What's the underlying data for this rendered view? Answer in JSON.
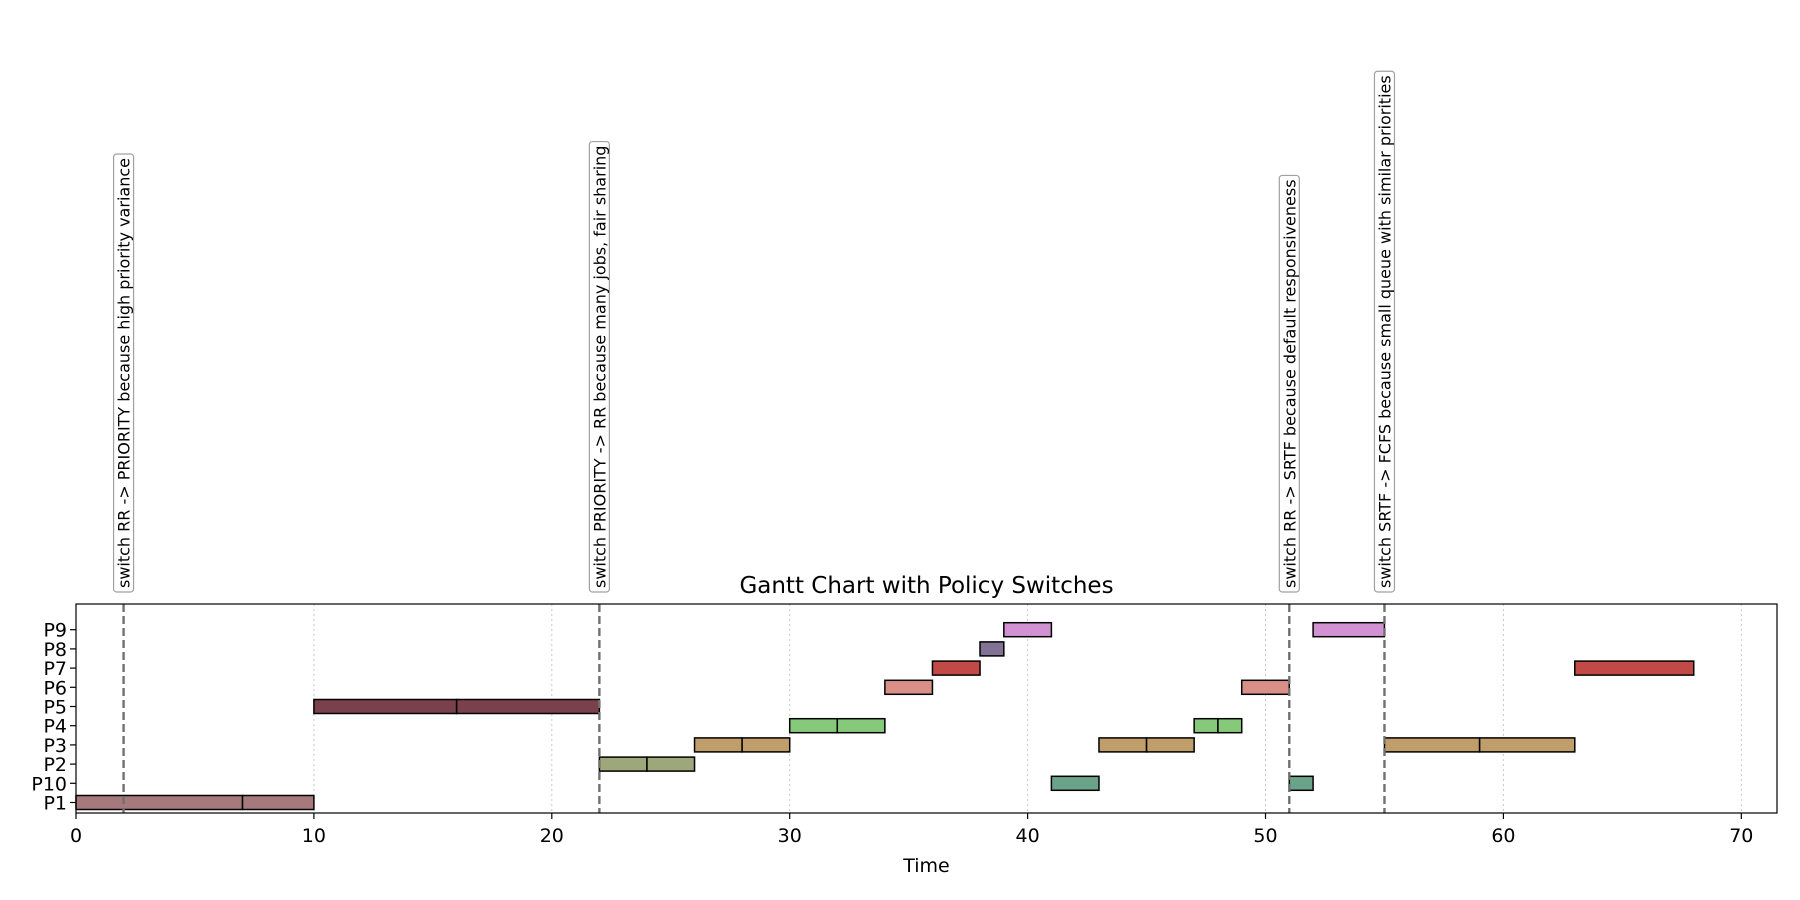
{
  "chart_data": {
    "type": "gantt",
    "title": "Gantt Chart with Policy Switches",
    "xlabel": "Time",
    "ylabel": "",
    "xlim": [
      0,
      71.5
    ],
    "x_ticks": [
      0,
      10,
      20,
      30,
      40,
      50,
      60,
      70
    ],
    "grid": "vertical dotted",
    "rows": [
      "P1",
      "P10",
      "P2",
      "P3",
      "P4",
      "P5",
      "P6",
      "P7",
      "P8",
      "P9"
    ],
    "colors": {
      "P1": "#a67a7d",
      "P10": "#6aa389",
      "P2": "#9da779",
      "P3": "#bf9e6b",
      "P4": "#86c97a",
      "P5": "#7a414d",
      "P6": "#d98f88",
      "P7": "#c24a46",
      "P8": "#827293",
      "P9": "#d291d3"
    },
    "segments": [
      {
        "process": "P1",
        "start": 0,
        "end": 7
      },
      {
        "process": "P1",
        "start": 7,
        "end": 10
      },
      {
        "process": "P5",
        "start": 10,
        "end": 16
      },
      {
        "process": "P5",
        "start": 16,
        "end": 22
      },
      {
        "process": "P2",
        "start": 22,
        "end": 24
      },
      {
        "process": "P2",
        "start": 24,
        "end": 26
      },
      {
        "process": "P3",
        "start": 26,
        "end": 28
      },
      {
        "process": "P3",
        "start": 28,
        "end": 30
      },
      {
        "process": "P4",
        "start": 30,
        "end": 32
      },
      {
        "process": "P4",
        "start": 32,
        "end": 34
      },
      {
        "process": "P6",
        "start": 34,
        "end": 36
      },
      {
        "process": "P7",
        "start": 36,
        "end": 38
      },
      {
        "process": "P8",
        "start": 38,
        "end": 39
      },
      {
        "process": "P9",
        "start": 39,
        "end": 41
      },
      {
        "process": "P10",
        "start": 41,
        "end": 43
      },
      {
        "process": "P3",
        "start": 43,
        "end": 45
      },
      {
        "process": "P3",
        "start": 45,
        "end": 47
      },
      {
        "process": "P4",
        "start": 47,
        "end": 48
      },
      {
        "process": "P4",
        "start": 48,
        "end": 49
      },
      {
        "process": "P6",
        "start": 49,
        "end": 51
      },
      {
        "process": "P10",
        "start": 51,
        "end": 52
      },
      {
        "process": "P9",
        "start": 52,
        "end": 55
      },
      {
        "process": "P3",
        "start": 55,
        "end": 59
      },
      {
        "process": "P3",
        "start": 59,
        "end": 63
      },
      {
        "process": "P7",
        "start": 63,
        "end": 68
      }
    ],
    "switches": [
      {
        "time": 2,
        "label": "switch RR -> PRIORITY because high priority variance"
      },
      {
        "time": 22,
        "label": "switch PRIORITY -> RR because many jobs, fair sharing"
      },
      {
        "time": 51,
        "label": "switch RR -> SRTF because default responsiveness"
      },
      {
        "time": 55,
        "label": "switch SRTF -> FCFS because small queue with similar priorities"
      }
    ]
  }
}
